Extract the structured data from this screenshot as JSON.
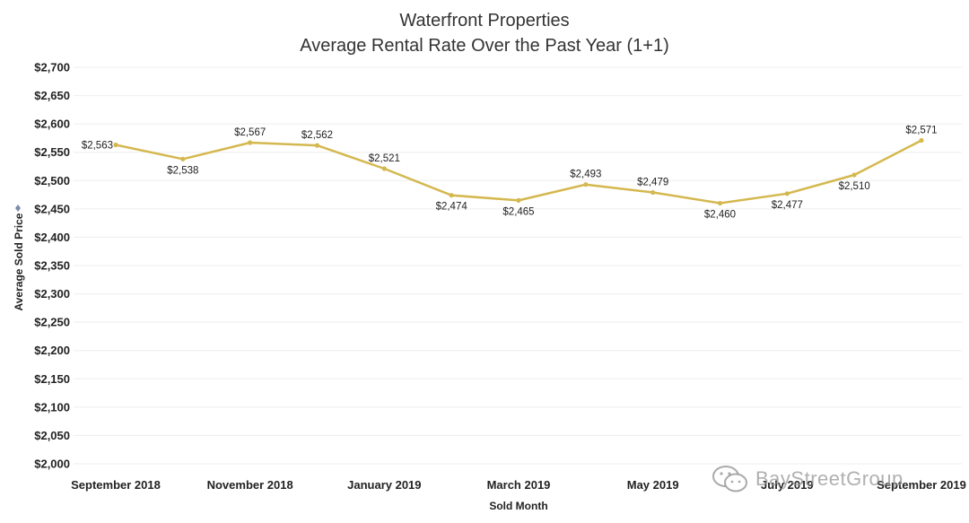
{
  "chart_data": {
    "type": "line",
    "title": "Waterfront Properties",
    "subtitle": "Average Rental Rate Over the Past Year (1+1)",
    "xlabel": "Sold Month",
    "ylabel": "Average Sold Price",
    "ylim": [
      2000,
      2700
    ],
    "yticks": [
      2000,
      2050,
      2100,
      2150,
      2200,
      2250,
      2300,
      2350,
      2400,
      2450,
      2500,
      2550,
      2600,
      2650,
      2700
    ],
    "ytick_labels": [
      "$2,000",
      "$2,050",
      "$2,100",
      "$2,150",
      "$2,200",
      "$2,250",
      "$2,300",
      "$2,350",
      "$2,400",
      "$2,450",
      "$2,500",
      "$2,550",
      "$2,600",
      "$2,650",
      "$2,700"
    ],
    "categories": [
      "Sep 2018",
      "Oct 2018",
      "Nov 2018",
      "Dec 2018",
      "Jan 2019",
      "Feb 2019",
      "Mar 2019",
      "Apr 2019",
      "May 2019",
      "Jun 2019",
      "Jul 2019",
      "Aug 2019",
      "Sep 2019"
    ],
    "xtick_labels": [
      "September 2018",
      "",
      "November 2018",
      "",
      "January 2019",
      "",
      "March 2019",
      "",
      "May 2019",
      "",
      "July 2019",
      "",
      "September 2019"
    ],
    "series": [
      {
        "name": "Average Sold Price",
        "values": [
          2563,
          2538,
          2567,
          2562,
          2521,
          2474,
          2465,
          2493,
          2479,
          2460,
          2477,
          2510,
          2571
        ],
        "labels": [
          "$2,563",
          "$2,538",
          "$2,567",
          "$2,562",
          "$2,521",
          "$2,474",
          "$2,465",
          "$2,493",
          "$2,479",
          "$2,460",
          "$2,477",
          "$2,510",
          "$2,571"
        ],
        "label_pos": [
          "left",
          "below",
          "above",
          "above",
          "above",
          "below",
          "below",
          "above",
          "above",
          "below",
          "below",
          "below",
          "above"
        ],
        "color": "#d4b84f"
      }
    ],
    "grid": true
  },
  "watermark": {
    "text": "BayStreetGroup",
    "icon": "wechat-icon"
  },
  "ylabel_icon": "sort-icon"
}
